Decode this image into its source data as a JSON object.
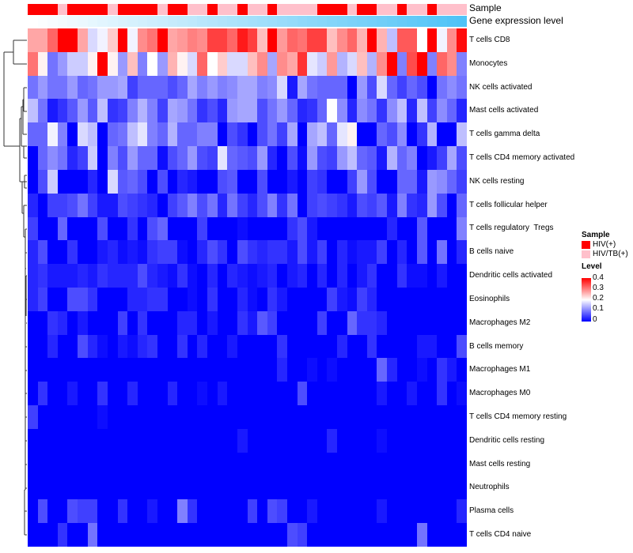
{
  "chart_data": {
    "type": "heatmap",
    "annotation_labels": [
      "Sample",
      "Gene expression level"
    ],
    "rows": [
      "T cells CD8",
      "Monocytes",
      "NK cells activated",
      "Mast cells activated",
      "T cells gamma delta",
      "T cells CD4 memory activated",
      "NK cells resting",
      "T cells follicular helper",
      "T cells regulatory  Tregs",
      "B cells naive",
      "Dendritic cells activated",
      "Eosinophils",
      "Macrophages M2",
      "B cells memory",
      "Macrophages M1",
      "Macrophages M0",
      "T cells CD4 memory resting",
      "Dendritic cells resting",
      "Mast cells resting",
      "Neutrophils",
      "Plasma cells",
      "T cells CD4 naive"
    ],
    "column_samples": [
      "HIV(+)",
      "HIV(+)",
      "HIV(+)",
      "HIV/TB(+)",
      "HIV(+)",
      "HIV(+)",
      "HIV(+)",
      "HIV(+)",
      "HIV/TB(+)",
      "HIV(+)",
      "HIV(+)",
      "HIV(+)",
      "HIV(+)",
      "HIV/TB(+)",
      "HIV(+)",
      "HIV(+)",
      "HIV/TB(+)",
      "HIV/TB(+)",
      "HIV(+)",
      "HIV/TB(+)",
      "HIV/TB(+)",
      "HIV(+)",
      "HIV/TB(+)",
      "HIV/TB(+)",
      "HIV(+)",
      "HIV/TB(+)",
      "HIV/TB(+)",
      "HIV/TB(+)",
      "HIV/TB(+)",
      "HIV(+)",
      "HIV(+)",
      "HIV(+)",
      "HIV/TB(+)",
      "HIV(+)",
      "HIV(+)",
      "HIV/TB(+)",
      "HIV/TB(+)",
      "HIV(+)",
      "HIV/TB(+)",
      "HIV/TB(+)",
      "HIV(+)",
      "HIV/TB(+)",
      "HIV/TB(+)",
      "HIV/TB(+)"
    ],
    "values": [
      [
        0.27,
        0.27,
        0.32,
        0.4,
        0.4,
        0.27,
        0.17,
        0.19,
        0.24,
        0.4,
        0.19,
        0.29,
        0.31,
        0.4,
        0.27,
        0.28,
        0.3,
        0.29,
        0.35,
        0.35,
        0.32,
        0.38,
        0.35,
        0.25,
        0.4,
        0.28,
        0.32,
        0.31,
        0.35,
        0.35,
        0.25,
        0.29,
        0.32,
        0.26,
        0.4,
        0.26,
        0.15,
        0.33,
        0.33,
        0.2,
        0.4,
        0.19,
        0.29,
        0.39
      ],
      [
        0.31,
        0.21,
        0.09,
        0.12,
        0.16,
        0.16,
        0.21,
        0.4,
        0.21,
        0.12,
        0.25,
        0.1,
        0.2,
        0.12,
        0.26,
        0.21,
        0.17,
        0.32,
        0.2,
        0.24,
        0.17,
        0.17,
        0.25,
        0.29,
        0.13,
        0.29,
        0.27,
        0.36,
        0.18,
        0.16,
        0.28,
        0.14,
        0.17,
        0.25,
        0.14,
        0.29,
        0.4,
        0.1,
        0.34,
        0.4,
        0.1,
        0.32,
        0.29,
        0.1
      ],
      [
        0.09,
        0.12,
        0.09,
        0.09,
        0.12,
        0.08,
        0.09,
        0.12,
        0.12,
        0.13,
        0.05,
        0.08,
        0.08,
        0.08,
        0.06,
        0.08,
        0.13,
        0.1,
        0.12,
        0.1,
        0.11,
        0.13,
        0.13,
        0.1,
        0.11,
        0.17,
        0.02,
        0.13,
        0.09,
        0.08,
        0.08,
        0.08,
        0,
        0.12,
        0.06,
        0.17,
        0.08,
        0.05,
        0.08,
        0.06,
        0,
        0.09,
        0.11,
        0.09
      ],
      [
        0.15,
        0.09,
        0.02,
        0.04,
        0.07,
        0.12,
        0.07,
        0.15,
        0.04,
        0.05,
        0.1,
        0.14,
        0.1,
        0.05,
        0.13,
        0.12,
        0.09,
        0.04,
        0.06,
        0.03,
        0.12,
        0.13,
        0.13,
        0.06,
        0.09,
        0.12,
        0.08,
        0.03,
        0.04,
        0.08,
        0.2,
        0.11,
        0.03,
        0.11,
        0.09,
        0.04,
        0.11,
        0.15,
        0.03,
        0.15,
        0.05,
        0.11,
        0.08,
        0.03
      ],
      [
        0.08,
        0.08,
        0.19,
        0.1,
        0,
        0.17,
        0.15,
        0,
        0.08,
        0.09,
        0.15,
        0.18,
        0.1,
        0.08,
        0.14,
        0.08,
        0.08,
        0.1,
        0.1,
        0,
        0.06,
        0.04,
        0,
        0.06,
        0.09,
        0.05,
        0.13,
        0,
        0.13,
        0.15,
        0.08,
        0.18,
        0.21,
        0,
        0,
        0.08,
        0.06,
        0.11,
        0,
        0.04,
        0.14,
        0,
        0,
        0.15
      ],
      [
        0,
        0.08,
        0.11,
        0.09,
        0.03,
        0.05,
        0.16,
        0,
        0.1,
        0.06,
        0.12,
        0.08,
        0.08,
        0.01,
        0.06,
        0.08,
        0.12,
        0.06,
        0.05,
        0.18,
        0.08,
        0.07,
        0.06,
        0.12,
        0.03,
        0,
        0.06,
        0.01,
        0.12,
        0.06,
        0.05,
        0.12,
        0.15,
        0.08,
        0.07,
        0.02,
        0.14,
        0.08,
        0.1,
        0,
        0.02,
        0.05,
        0.13,
        0.06
      ],
      [
        0,
        0.06,
        0.16,
        0,
        0,
        0,
        0.03,
        0,
        0.17,
        0.07,
        0.08,
        0.06,
        0,
        0.06,
        0,
        0.03,
        0.02,
        0,
        0,
        0.06,
        0.07,
        0,
        0,
        0.06,
        0,
        0,
        0.02,
        0,
        0.05,
        0.04,
        0,
        0,
        0.05,
        0.12,
        0.06,
        0,
        0,
        0.08,
        0.08,
        0.02,
        0.12,
        0.11,
        0.08,
        0.05
      ],
      [
        0.03,
        0,
        0.05,
        0.05,
        0.06,
        0.09,
        0.05,
        0.02,
        0.02,
        0.06,
        0.05,
        0.04,
        0.03,
        0,
        0.05,
        0.07,
        0.1,
        0.06,
        0.09,
        0.03,
        0.09,
        0.05,
        0.03,
        0.06,
        0.1,
        0.04,
        0.09,
        0,
        0.05,
        0.06,
        0.05,
        0.04,
        0.02,
        0.06,
        0.05,
        0.07,
        0.02,
        0.1,
        0.04,
        0.03,
        0.12,
        0.06,
        0,
        0.08
      ],
      [
        0.05,
        0,
        0,
        0.08,
        0,
        0,
        0,
        0.06,
        0,
        0,
        0.04,
        0,
        0.06,
        0.08,
        0,
        0,
        0,
        0.05,
        0,
        0,
        0,
        0.01,
        0,
        0,
        0,
        0,
        0.04,
        0.06,
        0.02,
        0,
        0,
        0,
        0,
        0,
        0,
        0,
        0.03,
        0,
        0,
        0.07,
        0,
        0,
        0,
        0.1
      ],
      [
        0.03,
        0.06,
        0,
        0,
        0.04,
        0,
        0,
        0.02,
        0.03,
        0.01,
        0.02,
        0.01,
        0.04,
        0.05,
        0.05,
        0.01,
        0,
        0.03,
        0.06,
        0.04,
        0,
        0.06,
        0.04,
        0.03,
        0.04,
        0.04,
        0.02,
        0.06,
        0.02,
        0.05,
        0,
        0.03,
        0.01,
        0.02,
        0.02,
        0.05,
        0,
        0.03,
        0,
        0.07,
        0,
        0.09,
        0,
        0.03
      ],
      [
        0.03,
        0.04,
        0.02,
        0.02,
        0.02,
        0.03,
        0.02,
        0.04,
        0.03,
        0.03,
        0.03,
        0.06,
        0.03,
        0.02,
        0.01,
        0.04,
        0.01,
        0,
        0.03,
        0,
        0.03,
        0.02,
        0.01,
        0.02,
        0.03,
        0,
        0.02,
        0.03,
        0,
        0.03,
        0,
        0.03,
        0,
        0.02,
        0.04,
        0,
        0,
        0.04,
        0.01,
        0.01,
        0,
        0.02,
        0,
        0
      ],
      [
        0.03,
        0.05,
        0,
        0,
        0.06,
        0.06,
        0.04,
        0,
        0,
        0,
        0.03,
        0.03,
        0.04,
        0.04,
        0,
        0,
        0.01,
        0,
        0.04,
        0,
        0,
        0.03,
        0.01,
        0,
        0.04,
        0.02,
        0,
        0,
        0,
        0,
        0.05,
        0.02,
        0.01,
        0.05,
        0.03,
        0,
        0,
        0,
        0,
        0,
        0,
        0,
        0,
        0
      ],
      [
        0,
        0,
        0.04,
        0.03,
        0,
        0.02,
        0,
        0,
        0,
        0.05,
        0,
        0.04,
        0,
        0,
        0,
        0.03,
        0.03,
        0,
        0.02,
        0,
        0,
        0.04,
        0.02,
        0.07,
        0.05,
        0,
        0,
        0,
        0,
        0.05,
        0,
        0,
        0.08,
        0.04,
        0.04,
        0.03,
        0,
        0,
        0,
        0,
        0,
        0,
        0,
        0
      ],
      [
        0,
        0,
        0.03,
        0,
        0,
        0.06,
        0.03,
        0.01,
        0,
        0.02,
        0.01,
        0.03,
        0.04,
        0,
        0,
        0.04,
        0,
        0.03,
        0,
        0,
        0.02,
        0,
        0,
        0,
        0,
        0.04,
        0,
        0,
        0,
        0,
        0,
        0.03,
        0,
        0,
        0.04,
        0,
        0,
        0,
        0,
        0.02,
        0.02,
        0,
        0,
        0.06
      ],
      [
        0,
        0,
        0,
        0,
        0,
        0,
        0,
        0,
        0,
        0,
        0,
        0,
        0,
        0,
        0,
        0,
        0,
        0,
        0,
        0,
        0,
        0,
        0,
        0,
        0,
        0.03,
        0,
        0,
        0.01,
        0,
        0.01,
        0,
        0,
        0,
        0,
        0.08,
        0.03,
        0,
        0,
        0.01,
        0,
        0.04,
        0.02,
        0
      ],
      [
        0,
        0.04,
        0,
        0,
        0.02,
        0,
        0,
        0.04,
        0,
        0,
        0.03,
        0,
        0,
        0,
        0.03,
        0,
        0,
        0.01,
        0,
        0.02,
        0,
        0,
        0,
        0,
        0,
        0,
        0,
        0.06,
        0,
        0,
        0,
        0,
        0,
        0,
        0,
        0.02,
        0,
        0,
        0.02,
        0,
        0,
        0.04,
        0,
        0.01
      ],
      [
        0.05,
        0,
        0,
        0,
        0,
        0,
        0,
        0.01,
        0,
        0,
        0,
        0,
        0,
        0,
        0,
        0,
        0,
        0,
        0,
        0,
        0,
        0,
        0,
        0,
        0,
        0,
        0,
        0,
        0,
        0,
        0,
        0,
        0,
        0,
        0,
        0,
        0,
        0,
        0,
        0,
        0,
        0,
        0,
        0
      ],
      [
        0,
        0,
        0,
        0,
        0,
        0,
        0,
        0,
        0,
        0,
        0,
        0,
        0,
        0,
        0,
        0,
        0,
        0,
        0,
        0,
        0,
        0.02,
        0,
        0,
        0,
        0,
        0,
        0,
        0,
        0,
        0.03,
        0,
        0,
        0,
        0,
        0.01,
        0,
        0,
        0,
        0,
        0,
        0,
        0,
        0
      ],
      [
        0,
        0,
        0,
        0,
        0,
        0,
        0,
        0,
        0,
        0,
        0,
        0,
        0,
        0,
        0,
        0,
        0,
        0,
        0,
        0,
        0,
        0,
        0,
        0,
        0,
        0,
        0,
        0,
        0,
        0,
        0,
        0,
        0,
        0,
        0,
        0,
        0,
        0,
        0,
        0,
        0,
        0,
        0,
        0
      ],
      [
        0,
        0,
        0,
        0,
        0,
        0,
        0,
        0,
        0,
        0,
        0,
        0,
        0,
        0,
        0,
        0,
        0,
        0,
        0,
        0,
        0,
        0,
        0,
        0,
        0,
        0,
        0,
        0,
        0,
        0,
        0,
        0,
        0,
        0,
        0,
        0,
        0,
        0,
        0,
        0,
        0,
        0,
        0,
        0
      ],
      [
        0,
        0.06,
        0,
        0,
        0.06,
        0.05,
        0.05,
        0,
        0,
        0.04,
        0,
        0,
        0.02,
        0,
        0,
        0.1,
        0.04,
        0,
        0,
        0,
        0,
        0,
        0.05,
        0,
        0.06,
        0.05,
        0,
        0,
        0.02,
        0,
        0,
        0,
        0,
        0,
        0,
        0.02,
        0,
        0,
        0,
        0,
        0,
        0,
        0,
        0.03
      ],
      [
        0,
        0,
        0,
        0.04,
        0,
        0,
        0.09,
        0,
        0,
        0,
        0,
        0,
        0,
        0,
        0,
        0,
        0,
        0,
        0,
        0,
        0,
        0,
        0,
        0,
        0,
        0,
        0.06,
        0.05,
        0,
        0,
        0,
        0,
        0,
        0,
        0,
        0,
        0,
        0,
        0,
        0.09,
        0,
        0,
        0,
        0
      ]
    ],
    "color_scale": {
      "min": 0,
      "mid": 0.2,
      "max": 0.4,
      "low_color": "#0000ff",
      "mid_color": "#ffffff",
      "high_color": "#ff0000"
    },
    "gene_expression_colors": {
      "low": "#ffffff",
      "high": "#4fc3f7"
    },
    "legend": {
      "sample_title": "Sample",
      "sample_items": [
        {
          "label": "HIV(+)",
          "color": "#ff0000"
        },
        {
          "label": "HIV/TB(+)",
          "color": "#ffc0cb"
        }
      ],
      "level_title": "Level",
      "level_ticks": [
        "0.4",
        "0.3",
        "0.2",
        "0.1",
        "0"
      ],
      "placement": "right"
    }
  }
}
